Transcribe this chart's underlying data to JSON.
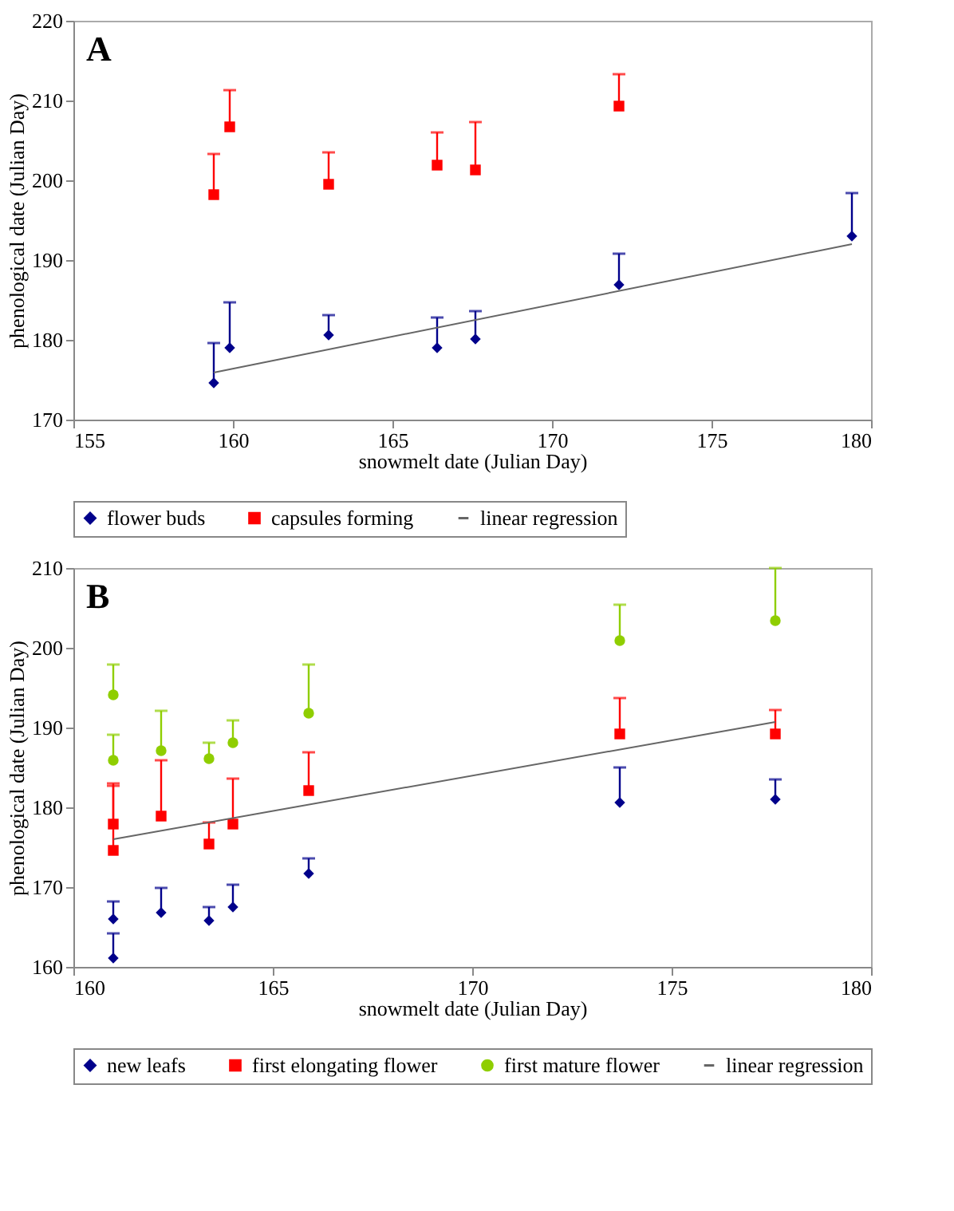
{
  "chart_data": [
    {
      "type": "scatter",
      "xlabel": "snowmelt date (Julian Day)",
      "ylabel": "phenological date (Julian Day)",
      "annotations": [
        "A"
      ],
      "xlim": [
        155,
        180
      ],
      "xticks": [
        155,
        160,
        165,
        170,
        175,
        180
      ],
      "ylim": [
        170,
        220
      ],
      "yticks": [
        170,
        180,
        190,
        200,
        210,
        220
      ],
      "grid": false,
      "legend": "bottom",
      "series": [
        {
          "name": "flower buds",
          "color": "#00008b",
          "marker": "diamond",
          "x": [
            159.4,
            159.9,
            163.0,
            166.4,
            167.6,
            172.1,
            179.4
          ],
          "values": [
            174.6,
            179.0,
            180.6,
            179.0,
            180.1,
            186.9,
            193.0
          ],
          "errors": [
            [
              174.6,
              179.6
            ],
            [
              179.0,
              184.7
            ],
            [
              180.6,
              183.1
            ],
            [
              179.0,
              182.8
            ],
            [
              180.1,
              183.6
            ],
            [
              186.9,
              190.8
            ],
            [
              193.0,
              198.4
            ]
          ]
        },
        {
          "name": "capsules forming",
          "color": "#ff0000",
          "marker": "square",
          "x": [
            159.4,
            159.9,
            163.0,
            166.4,
            167.6,
            172.1
          ],
          "values": [
            198.2,
            206.7,
            199.5,
            201.9,
            201.3,
            209.3
          ],
          "errors": [
            [
              198.2,
              203.3
            ],
            [
              206.7,
              211.3
            ],
            [
              199.5,
              203.5
            ],
            [
              201.9,
              206.0
            ],
            [
              201.3,
              207.3
            ],
            [
              209.3,
              213.3
            ]
          ]
        },
        {
          "name": "linear regression",
          "color": "#666666",
          "type": "line",
          "x": [
            159.4,
            179.4
          ],
          "values": [
            175.9,
            192.0
          ]
        }
      ]
    },
    {
      "type": "scatter",
      "xlabel": "snowmelt date (Julian Day)",
      "ylabel": "phenological date (Julian Day)",
      "annotations": [
        "B"
      ],
      "xlim": [
        160,
        180
      ],
      "xticks": [
        160,
        165,
        170,
        175,
        180
      ],
      "ylim": [
        160,
        210
      ],
      "yticks": [
        160,
        170,
        180,
        190,
        200,
        210
      ],
      "grid": false,
      "legend": "bottom",
      "series": [
        {
          "name": "new leafs",
          "color": "#00008b",
          "marker": "diamond",
          "x": [
            161.0,
            161.0,
            162.2,
            163.4,
            164.0,
            165.9,
            173.7,
            177.6
          ],
          "values": [
            161.1,
            166.0,
            166.8,
            165.8,
            167.5,
            171.7,
            180.6,
            181.0
          ],
          "errors": [
            [
              161.1,
              164.2
            ],
            [
              166.0,
              168.2
            ],
            [
              166.8,
              169.9
            ],
            [
              165.8,
              167.5
            ],
            [
              167.5,
              170.3
            ],
            [
              171.7,
              173.6
            ],
            [
              180.6,
              185.0
            ],
            [
              181.0,
              183.5
            ]
          ]
        },
        {
          "name": "first elongating flower",
          "color": "#ff0000",
          "marker": "square",
          "x": [
            161.0,
            161.0,
            162.2,
            163.4,
            164.0,
            165.9,
            173.7,
            177.6
          ],
          "values": [
            174.6,
            177.9,
            178.9,
            175.4,
            177.9,
            182.1,
            189.2,
            189.2
          ],
          "errors": [
            [
              174.6,
              182.7
            ],
            [
              177.9,
              183.0
            ],
            [
              178.9,
              185.9
            ],
            [
              175.4,
              178.1
            ],
            [
              177.9,
              183.6
            ],
            [
              182.1,
              186.9
            ],
            [
              189.2,
              193.7
            ],
            [
              189.2,
              192.2
            ]
          ]
        },
        {
          "name": "first mature flower",
          "color": "#8fce00",
          "marker": "circle",
          "x": [
            161.0,
            161.0,
            162.2,
            163.4,
            164.0,
            165.9,
            173.7,
            177.6
          ],
          "values": [
            194.1,
            185.9,
            187.1,
            186.1,
            188.1,
            191.8,
            200.9,
            203.4
          ],
          "errors": [
            [
              194.1,
              197.9
            ],
            [
              185.9,
              189.1
            ],
            [
              187.1,
              192.1
            ],
            [
              186.1,
              188.1
            ],
            [
              188.1,
              190.9
            ],
            [
              191.8,
              197.9
            ],
            [
              200.9,
              205.4
            ],
            [
              203.4,
              210.0
            ]
          ]
        },
        {
          "name": "linear regression",
          "color": "#666666",
          "type": "line",
          "x": [
            161.0,
            177.6
          ],
          "values": [
            176.0,
            190.7
          ]
        }
      ]
    }
  ]
}
